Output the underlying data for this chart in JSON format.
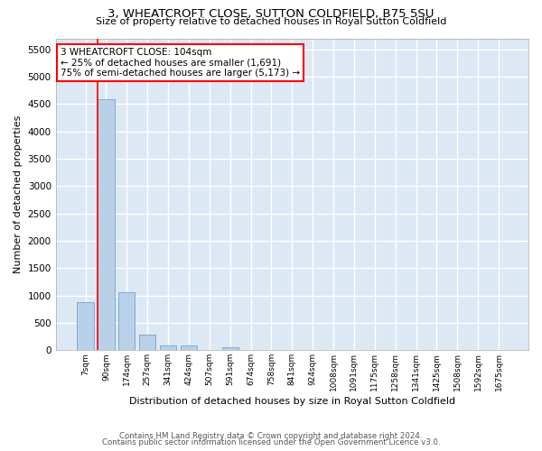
{
  "title": "3, WHEATCROFT CLOSE, SUTTON COLDFIELD, B75 5SU",
  "subtitle": "Size of property relative to detached houses in Royal Sutton Coldfield",
  "xlabel": "Distribution of detached houses by size in Royal Sutton Coldfield",
  "ylabel": "Number of detached properties",
  "bar_color": "#b8d0e8",
  "bar_edge_color": "#6098c8",
  "background_color": "#dce8f4",
  "grid_color": "#ffffff",
  "categories": [
    "7sqm",
    "90sqm",
    "174sqm",
    "257sqm",
    "341sqm",
    "424sqm",
    "507sqm",
    "591sqm",
    "674sqm",
    "758sqm",
    "841sqm",
    "924sqm",
    "1008sqm",
    "1091sqm",
    "1175sqm",
    "1258sqm",
    "1341sqm",
    "1425sqm",
    "1508sqm",
    "1592sqm",
    "1675sqm"
  ],
  "values": [
    880,
    4580,
    1060,
    290,
    90,
    85,
    0,
    55,
    0,
    0,
    0,
    0,
    0,
    0,
    0,
    0,
    0,
    0,
    0,
    0,
    0
  ],
  "ylim": [
    0,
    5700
  ],
  "yticks": [
    0,
    500,
    1000,
    1500,
    2000,
    2500,
    3000,
    3500,
    4000,
    4500,
    5000,
    5500
  ],
  "property_label": "3 WHEATCROFT CLOSE: 104sqm",
  "pct_smaller": "25% of detached houses are smaller (1,691)",
  "pct_larger": "75% of semi-detached houses are larger (5,173)",
  "red_line_bin_index": 1,
  "footer1": "Contains HM Land Registry data © Crown copyright and database right 2024.",
  "footer2": "Contains public sector information licensed under the Open Government Licence v3.0."
}
